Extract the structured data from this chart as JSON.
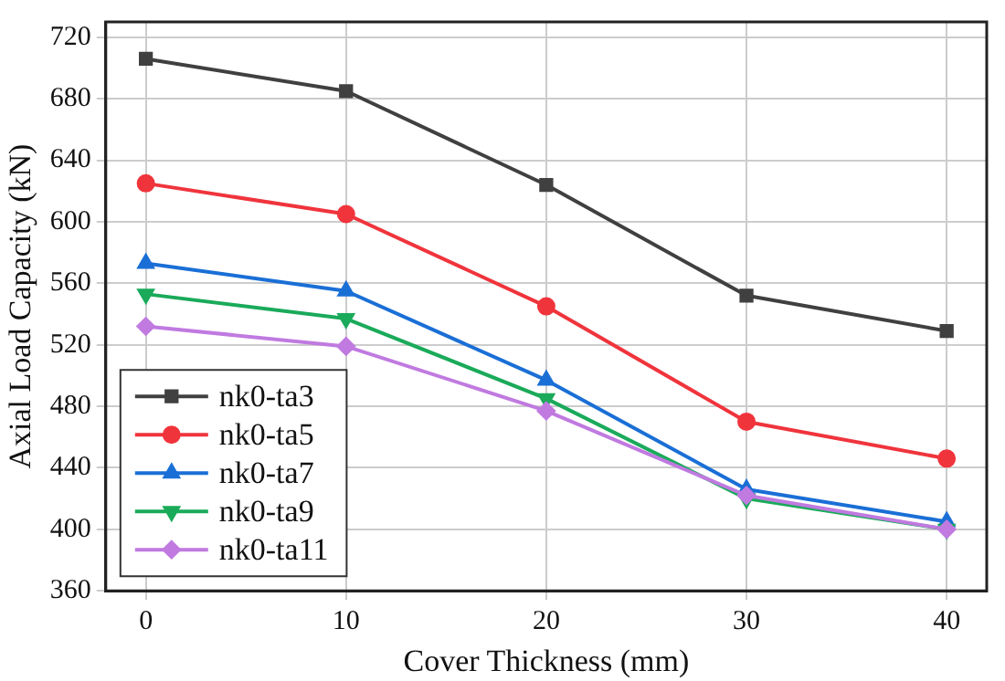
{
  "chart_data": {
    "type": "line",
    "xlabel": "Cover Thickness (mm)",
    "ylabel": "Axial Load Capacity (kN)",
    "x": [
      0,
      10,
      20,
      30,
      40
    ],
    "xlim": [
      -2,
      42
    ],
    "xticks": [
      0,
      10,
      20,
      30,
      40
    ],
    "ylim": [
      360,
      730
    ],
    "yticks": [
      360,
      400,
      440,
      480,
      520,
      560,
      600,
      640,
      680,
      720
    ],
    "grid": true,
    "legend": "bottom left",
    "line_style": "solid",
    "series": [
      {
        "name": "nk0-ta3",
        "color": "#404040",
        "marker": "square",
        "values": [
          706,
          685,
          624,
          552,
          529
        ]
      },
      {
        "name": "nk0-ta5",
        "color": "#f0343c",
        "marker": "circle",
        "values": [
          625,
          605,
          545,
          470,
          446
        ]
      },
      {
        "name": "nk0-ta7",
        "color": "#1a6fd6",
        "marker": "triangle",
        "values": [
          573,
          555,
          497,
          426,
          405
        ]
      },
      {
        "name": "nk0-ta9",
        "color": "#1aaa5a",
        "marker": "triangle-down",
        "values": [
          553,
          537,
          485,
          420,
          400
        ]
      },
      {
        "name": "nk0-ta11",
        "color": "#c07ae0",
        "marker": "diamond",
        "values": [
          532,
          519,
          477,
          422,
          400
        ]
      }
    ]
  }
}
